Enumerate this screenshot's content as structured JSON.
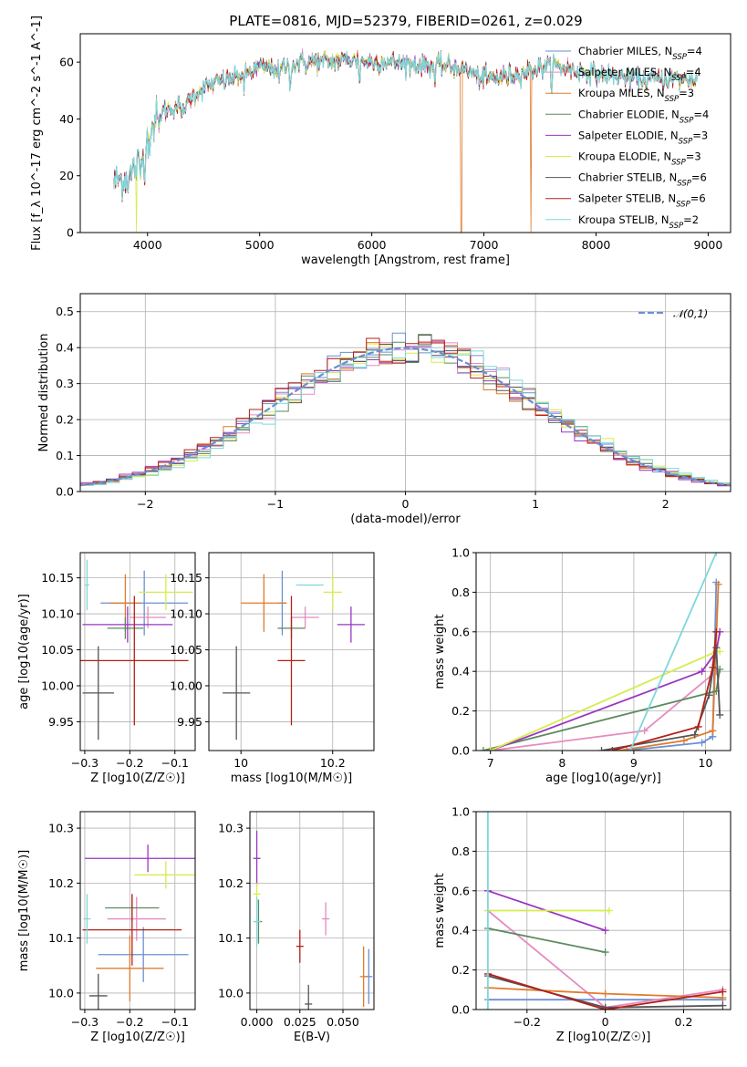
{
  "title": "PLATE=0816, MJD=52379, FIBERID=0261, z=0.029",
  "models": [
    {
      "name": "Chabrier MILES",
      "nssp": "4",
      "color": "#6a8fd4"
    },
    {
      "name": "Salpeter MILES",
      "nssp": "4",
      "color": "#e58ac0"
    },
    {
      "name": "Kroupa MILES",
      "nssp": "3",
      "color": "#e07b2c"
    },
    {
      "name": "Chabrier ELODIE",
      "nssp": "4",
      "color": "#5c8a5e"
    },
    {
      "name": "Salpeter ELODIE",
      "nssp": "3",
      "color": "#9a35c0"
    },
    {
      "name": "Kroupa ELODIE",
      "nssp": "3",
      "color": "#d6ec4c"
    },
    {
      "name": "Chabrier STELIB",
      "nssp": "6",
      "color": "#555555"
    },
    {
      "name": "Salpeter STELIB",
      "nssp": "6",
      "color": "#b3211a"
    },
    {
      "name": "Kroupa STELIB",
      "nssp": "2",
      "color": "#7fd7dc"
    }
  ],
  "chart_data": [
    {
      "id": "spectrum",
      "type": "line",
      "xlabel": "wavelength [Angstrom, rest frame]",
      "ylabel": "Flux [f_λ 10^-17 erg cm^-2 s^-1 A^-1]",
      "xlim": [
        3400,
        9200
      ],
      "ylim": [
        0,
        70
      ],
      "xticks": [
        4000,
        5000,
        6000,
        7000,
        8000,
        9000
      ],
      "yticks": [
        0,
        20,
        40,
        60
      ],
      "legend": "top-right",
      "continuum": [
        [
          3700,
          18
        ],
        [
          3850,
          20
        ],
        [
          3950,
          26
        ],
        [
          4000,
          33
        ],
        [
          4100,
          42
        ],
        [
          4300,
          45
        ],
        [
          4500,
          51
        ],
        [
          4800,
          55
        ],
        [
          5000,
          58
        ],
        [
          5200,
          58
        ],
        [
          5400,
          60
        ],
        [
          5600,
          60
        ],
        [
          5800,
          61
        ],
        [
          6000,
          60
        ],
        [
          6200,
          60
        ],
        [
          6400,
          59
        ],
        [
          6600,
          59
        ],
        [
          6800,
          58
        ],
        [
          7000,
          54
        ],
        [
          7200,
          55
        ],
        [
          7400,
          57
        ],
        [
          7600,
          59
        ],
        [
          7800,
          57
        ],
        [
          8000,
          56
        ],
        [
          8200,
          55
        ],
        [
          8400,
          54
        ],
        [
          8600,
          54
        ],
        [
          8900,
          54
        ]
      ],
      "dropouts": [
        {
          "x": 3900,
          "model": 5
        },
        {
          "x": 6800,
          "model": 2
        },
        {
          "x": 7420,
          "model": 2
        }
      ]
    },
    {
      "id": "residuals",
      "type": "line",
      "xlabel": "(data-model)/error",
      "ylabel": "Normed distribution",
      "xlim": [
        -2.5,
        2.5
      ],
      "ylim": [
        0,
        0.55
      ],
      "xticks": [
        -2,
        -1,
        0,
        1,
        2
      ],
      "yticks": [
        0.0,
        0.1,
        0.2,
        0.3,
        0.4,
        0.5
      ],
      "reference": {
        "label": "𝒩(0,1)",
        "mean": 0,
        "sigma": 1,
        "color": "#6a8fd4"
      },
      "legend": "top-right"
    },
    {
      "id": "age-vs-Z",
      "type": "scatter",
      "xlabel": "Z [log10(Z/Z☉)]",
      "ylabel": "age [log10(age/yr)]",
      "xlim": [
        -0.31,
        -0.055
      ],
      "ylim": [
        9.91,
        10.185
      ],
      "xticks": [
        -0.3,
        -0.2,
        -0.1
      ],
      "yticks": [
        9.95,
        10.0,
        10.05,
        10.1,
        10.15
      ],
      "points": [
        {
          "x": -0.168,
          "y": 10.115,
          "xerr": 0.097,
          "yerr": 0.045,
          "model": 0
        },
        {
          "x": -0.16,
          "y": 10.095,
          "xerr": 0.04,
          "yerr": 0.015,
          "model": 1
        },
        {
          "x": -0.21,
          "y": 10.115,
          "xerr": 0.035,
          "yerr": 0.04,
          "model": 2
        },
        {
          "x": -0.21,
          "y": 10.08,
          "xerr": 0.04,
          "yerr": 0.015,
          "model": 3
        },
        {
          "x": -0.205,
          "y": 10.085,
          "xerr": 0.1,
          "yerr": 0.025,
          "model": 4
        },
        {
          "x": -0.12,
          "y": 10.13,
          "xerr": 0.06,
          "yerr": 0.025,
          "model": 5
        },
        {
          "x": -0.27,
          "y": 9.99,
          "xerr": 0.035,
          "yerr": 0.065,
          "model": 6
        },
        {
          "x": -0.19,
          "y": 10.035,
          "xerr": 0.12,
          "yerr": 0.09,
          "model": 7
        },
        {
          "x": -0.295,
          "y": 10.14,
          "xerr": 0.005,
          "yerr": 0.035,
          "model": 8
        }
      ]
    },
    {
      "id": "age-vs-mass",
      "type": "scatter",
      "xlabel": "mass [log10(M/M☉)]",
      "ylabel": "",
      "xlim": [
        9.93,
        10.29
      ],
      "ylim": [
        9.91,
        10.185
      ],
      "xticks": [
        10.0,
        10.2
      ],
      "yticks": [
        9.95,
        10.0,
        10.05,
        10.1,
        10.15
      ],
      "points": [
        {
          "x": 10.09,
          "y": 10.115,
          "xerr": 0.0,
          "yerr": 0.045,
          "model": 0
        },
        {
          "x": 10.14,
          "y": 10.095,
          "xerr": 0.03,
          "yerr": 0.015,
          "model": 1
        },
        {
          "x": 10.05,
          "y": 10.115,
          "xerr": 0.05,
          "yerr": 0.04,
          "model": 2
        },
        {
          "x": 10.11,
          "y": 10.08,
          "xerr": 0.03,
          "yerr": 0.015,
          "model": 3
        },
        {
          "x": 10.24,
          "y": 10.085,
          "xerr": 0.03,
          "yerr": 0.025,
          "model": 4
        },
        {
          "x": 10.2,
          "y": 10.13,
          "xerr": 0.02,
          "yerr": 0.025,
          "model": 5
        },
        {
          "x": 9.99,
          "y": 9.99,
          "xerr": 0.03,
          "yerr": 0.065,
          "model": 6
        },
        {
          "x": 10.11,
          "y": 10.035,
          "xerr": 0.03,
          "yerr": 0.09,
          "model": 7
        },
        {
          "x": 10.15,
          "y": 10.14,
          "xerr": 0.03,
          "yerr": 0.0,
          "model": 8
        }
      ]
    },
    {
      "id": "mass-weight-vs-age",
      "type": "line",
      "xlabel": "age [log10(age/yr)]",
      "ylabel": "mass weight",
      "xlim": [
        6.8,
        10.35
      ],
      "ylim": [
        0,
        1.0
      ],
      "xticks": [
        7,
        8,
        9,
        10
      ],
      "yticks": [
        0.0,
        0.2,
        0.4,
        0.6,
        0.8,
        1.0
      ],
      "series": [
        {
          "model": 0,
          "x": [
            8.9,
            9.95,
            10.1,
            10.15
          ],
          "y": [
            0.0,
            0.04,
            0.07,
            0.85
          ]
        },
        {
          "model": 1,
          "x": [
            7.0,
            9.15,
            10.15
          ],
          "y": [
            0.0,
            0.1,
            0.4
          ]
        },
        {
          "model": 2,
          "x": [
            8.8,
            9.7,
            10.1,
            10.18
          ],
          "y": [
            0.0,
            0.05,
            0.1,
            0.84
          ]
        },
        {
          "model": 3,
          "x": [
            6.9,
            10.15,
            10.2
          ],
          "y": [
            0.0,
            0.3,
            0.41
          ]
        },
        {
          "model": 4,
          "x": [
            7.0,
            9.95,
            10.15,
            10.2
          ],
          "y": [
            0.0,
            0.4,
            0.5,
            0.6
          ]
        },
        {
          "model": 5,
          "x": [
            7.0,
            10.15,
            10.2
          ],
          "y": [
            0.0,
            0.5,
            0.5
          ]
        },
        {
          "model": 6,
          "x": [
            8.55,
            9.85,
            10.05,
            10.15,
            10.2
          ],
          "y": [
            0.0,
            0.08,
            0.28,
            0.52,
            0.18
          ]
        },
        {
          "model": 7,
          "x": [
            8.7,
            9.9,
            10.1,
            10.15
          ],
          "y": [
            0.0,
            0.12,
            0.42,
            0.6
          ]
        },
        {
          "model": 8,
          "x": [
            8.95,
            10.15
          ],
          "y": [
            0.0,
            1.0
          ]
        }
      ]
    },
    {
      "id": "mass-vs-Z",
      "type": "scatter",
      "xlabel": "Z [log10(Z/Z☉)]",
      "ylabel": "mass [log10(M/M☉)]",
      "xlim": [
        -0.31,
        -0.055
      ],
      "ylim": [
        9.97,
        10.33
      ],
      "xticks": [
        -0.3,
        -0.2,
        -0.1
      ],
      "yticks": [
        10.0,
        10.1,
        10.2,
        10.3
      ],
      "points": [
        {
          "x": -0.17,
          "y": 10.07,
          "xerr": 0.1,
          "yerr": 0.05,
          "model": 0
        },
        {
          "x": -0.185,
          "y": 10.135,
          "xerr": 0.065,
          "yerr": 0.04,
          "model": 1
        },
        {
          "x": -0.2,
          "y": 10.045,
          "xerr": 0.075,
          "yerr": 0.06,
          "model": 2
        },
        {
          "x": -0.195,
          "y": 10.155,
          "xerr": 0.06,
          "yerr": 0.025,
          "model": 3
        },
        {
          "x": -0.16,
          "y": 10.245,
          "xerr": 0.14,
          "yerr": 0.025,
          "model": 4
        },
        {
          "x": -0.12,
          "y": 10.215,
          "xerr": 0.07,
          "yerr": 0.025,
          "model": 5
        },
        {
          "x": -0.27,
          "y": 9.995,
          "xerr": 0.02,
          "yerr": 0.04,
          "model": 6
        },
        {
          "x": -0.195,
          "y": 10.115,
          "xerr": 0.11,
          "yerr": 0.065,
          "model": 7
        },
        {
          "x": -0.295,
          "y": 10.135,
          "xerr": 0.0,
          "yerr": 0.045,
          "model": 8
        }
      ]
    },
    {
      "id": "mass-vs-ebv",
      "type": "scatter",
      "xlabel": "E(B-V)",
      "ylabel": "",
      "xlim": [
        -0.004,
        0.068
      ],
      "ylim": [
        9.97,
        10.33
      ],
      "xticks": [
        0.0,
        0.025,
        0.05
      ],
      "xticklabels": [
        "0.000",
        "0.025",
        "0.050"
      ],
      "yticks": [
        10.0,
        10.1,
        10.2,
        10.3
      ],
      "points": [
        {
          "x": 0.065,
          "y": 10.03,
          "yerr": 0.05,
          "model": 0
        },
        {
          "x": 0.04,
          "y": 10.135,
          "yerr": 0.03,
          "model": 1
        },
        {
          "x": 0.062,
          "y": 10.03,
          "yerr": 0.055,
          "model": 2
        },
        {
          "x": 0.001,
          "y": 10.13,
          "yerr": 0.04,
          "model": 3
        },
        {
          "x": 0.0,
          "y": 10.245,
          "yerr": 0.05,
          "model": 4
        },
        {
          "x": 0.0,
          "y": 10.18,
          "yerr": 0.02,
          "model": 5
        },
        {
          "x": 0.03,
          "y": 9.98,
          "yerr": 0.035,
          "model": 6
        },
        {
          "x": 0.025,
          "y": 10.085,
          "yerr": 0.03,
          "model": 7
        },
        {
          "x": 0.0,
          "y": 10.13,
          "yerr": 0.045,
          "model": 8
        }
      ]
    },
    {
      "id": "mass-weight-vs-Z",
      "type": "line",
      "xlabel": "Z [log10(Z/Z☉)]",
      "ylabel": "mass weight",
      "xlim": [
        -0.33,
        0.32
      ],
      "ylim": [
        0,
        1.0
      ],
      "xticks": [
        -0.2,
        0.0,
        0.2
      ],
      "yticks": [
        0.0,
        0.2,
        0.4,
        0.6,
        0.8,
        1.0
      ],
      "series": [
        {
          "model": 0,
          "x": [
            -0.3,
            0.3
          ],
          "y": [
            0.05,
            0.05
          ]
        },
        {
          "model": 1,
          "x": [
            -0.3,
            0.0,
            0.3
          ],
          "y": [
            0.5,
            0.01,
            0.1
          ]
        },
        {
          "model": 2,
          "x": [
            -0.3,
            0.0,
            0.3
          ],
          "y": [
            0.11,
            0.08,
            0.06
          ]
        },
        {
          "model": 3,
          "x": [
            -0.3,
            0.0
          ],
          "y": [
            0.41,
            0.29
          ]
        },
        {
          "model": 4,
          "x": [
            -0.3,
            0.0
          ],
          "y": [
            0.6,
            0.4
          ]
        },
        {
          "model": 5,
          "x": [
            -0.3,
            0.01
          ],
          "y": [
            0.5,
            0.5
          ]
        },
        {
          "model": 6,
          "x": [
            -0.3,
            0.0,
            0.3
          ],
          "y": [
            0.17,
            0.01,
            0.02
          ]
        },
        {
          "model": 7,
          "x": [
            -0.3,
            0.0,
            0.3
          ],
          "y": [
            0.18,
            0.0,
            0.09
          ]
        },
        {
          "model": 8,
          "x": [
            -0.3,
            -0.3
          ],
          "y": [
            0.0,
            1.0
          ]
        }
      ]
    }
  ]
}
